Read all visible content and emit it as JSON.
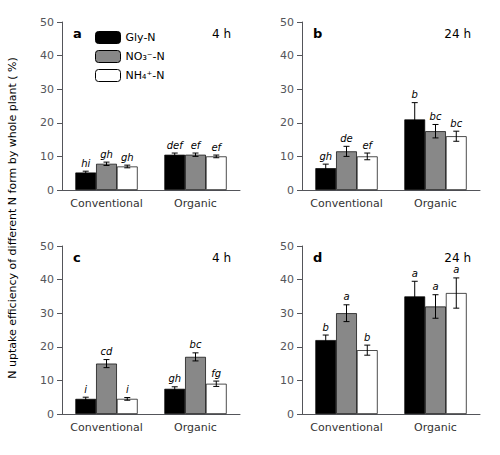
{
  "chart_data": [
    {
      "type": "bar",
      "title": "a",
      "subtitle": "4 h",
      "ylabel": "N uptake efficiency of different N form by whole plant ( %)",
      "categories": [
        "Conventional",
        "Organic"
      ],
      "series": [
        {
          "name": "Gly-N",
          "color": "#000000",
          "values": [
            5.2,
            10.5
          ],
          "errors": [
            0.4,
            0.5
          ],
          "annotations": [
            "hi",
            "def"
          ]
        },
        {
          "name": "NO₃⁻-N",
          "color": "#888888",
          "values": [
            7.8,
            10.5
          ],
          "errors": [
            0.5,
            0.5
          ],
          "annotations": [
            "gh",
            "ef"
          ]
        },
        {
          "name": "NH₄⁺-N",
          "color": "#ffffff",
          "values": [
            7.0,
            10.0
          ],
          "errors": [
            0.4,
            0.4
          ],
          "annotations": [
            "gh",
            "ef"
          ]
        }
      ],
      "ylim": [
        0,
        50
      ],
      "yticks": [
        0,
        10,
        20,
        30,
        40,
        50
      ],
      "grid": false,
      "legend": "upper left"
    },
    {
      "type": "bar",
      "title": "b",
      "subtitle": "24 h",
      "categories": [
        "Conventional",
        "Organic"
      ],
      "series": [
        {
          "name": "Gly-N",
          "color": "#000000",
          "values": [
            6.5,
            21.0
          ],
          "errors": [
            1.2,
            5.0
          ],
          "annotations": [
            "gh",
            "b"
          ]
        },
        {
          "name": "NO₃⁻-N",
          "color": "#888888",
          "values": [
            11.5,
            17.5
          ],
          "errors": [
            1.5,
            2.0
          ],
          "annotations": [
            "de",
            "bc"
          ]
        },
        {
          "name": "NH₄⁺-N",
          "color": "#ffffff",
          "values": [
            10.0,
            16.0
          ],
          "errors": [
            1.0,
            1.5
          ],
          "annotations": [
            "ef",
            "bc"
          ]
        }
      ],
      "ylim": [
        0,
        50
      ],
      "yticks": [
        0,
        10,
        20,
        30,
        40,
        50
      ],
      "grid": false
    },
    {
      "type": "bar",
      "title": "c",
      "subtitle": "4 h",
      "categories": [
        "Conventional",
        "Organic"
      ],
      "series": [
        {
          "name": "Gly-N",
          "color": "#000000",
          "values": [
            4.5,
            7.5
          ],
          "errors": [
            0.5,
            0.6
          ],
          "annotations": [
            "i",
            "gh"
          ]
        },
        {
          "name": "NO₃⁻-N",
          "color": "#888888",
          "values": [
            15.0,
            17.0
          ],
          "errors": [
            1.2,
            1.2
          ],
          "annotations": [
            "cd",
            "bc"
          ]
        },
        {
          "name": "NH₄⁺-N",
          "color": "#ffffff",
          "values": [
            4.5,
            9.0
          ],
          "errors": [
            0.4,
            0.8
          ],
          "annotations": [
            "i",
            "fg"
          ]
        }
      ],
      "ylim": [
        0,
        50
      ],
      "yticks": [
        0,
        10,
        20,
        30,
        40,
        50
      ],
      "grid": false
    },
    {
      "type": "bar",
      "title": "d",
      "subtitle": "24 h",
      "categories": [
        "Conventional",
        "Organic"
      ],
      "series": [
        {
          "name": "Gly-N",
          "color": "#000000",
          "values": [
            22.0,
            35.0
          ],
          "errors": [
            1.5,
            4.5
          ],
          "annotations": [
            "b",
            "a"
          ]
        },
        {
          "name": "NO₃⁻-N",
          "color": "#888888",
          "values": [
            30.0,
            32.0
          ],
          "errors": [
            2.5,
            3.5
          ],
          "annotations": [
            "a",
            "a"
          ]
        },
        {
          "name": "NH₄⁺-N",
          "color": "#ffffff",
          "values": [
            19.0,
            36.0
          ],
          "errors": [
            1.5,
            4.5
          ],
          "annotations": [
            "b",
            "a"
          ]
        }
      ],
      "ylim": [
        0,
        50
      ],
      "yticks": [
        0,
        10,
        20,
        30,
        40,
        50
      ],
      "grid": false
    }
  ]
}
